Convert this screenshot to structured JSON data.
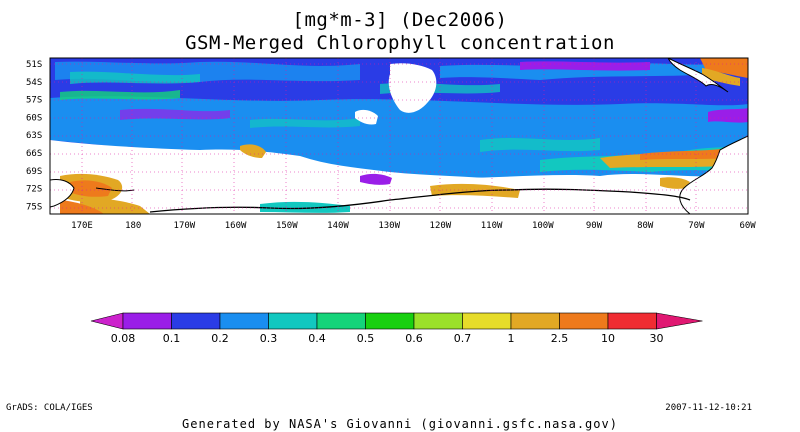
{
  "title": {
    "line1": "[mg*m-3] (Dec2006)",
    "line2": "GSM-Merged Chlorophyll concentration"
  },
  "map": {
    "lat_labels": [
      "51S",
      "54S",
      "57S",
      "60S",
      "63S",
      "66S",
      "69S",
      "72S",
      "75S"
    ],
    "lon_labels": [
      "170E",
      "180",
      "170W",
      "160W",
      "150W",
      "140W",
      "130W",
      "120W",
      "110W",
      "100W",
      "90W",
      "80W",
      "70W",
      "60W"
    ],
    "grid": "dotted",
    "land_color": "#ffffff",
    "nodata_color": "#ffffff"
  },
  "colorbar": {
    "colors": [
      "#9a1ee8",
      "#2a3ce6",
      "#1a8ef0",
      "#12c8c0",
      "#14d47a",
      "#18d010",
      "#9be02a",
      "#e6dc2a",
      "#e2a824",
      "#ee7a1c",
      "#f02c32"
    ],
    "under_color": "#cc22cc",
    "over_color": "#e01872",
    "tick_labels": [
      "0.08",
      "0.1",
      "0.2",
      "0.3",
      "0.4",
      "0.5",
      "0.6",
      "0.7",
      "1",
      "2.5",
      "10",
      "30"
    ]
  },
  "footer": {
    "left": "GrADS: COLA/IGES",
    "right": "2007-11-12-10:21",
    "center": "Generated by NASA's Giovanni (giovanni.gsfc.nasa.gov)"
  }
}
